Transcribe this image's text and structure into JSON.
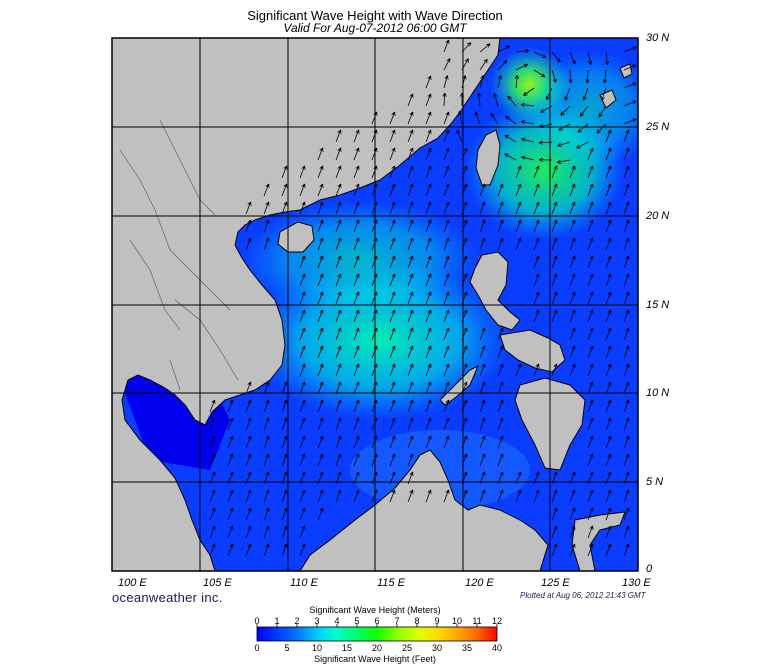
{
  "header": {
    "title": "Significant Wave Height with Wave Direction",
    "subtitle": "Valid For Aug-07-2012 06:00 GMT"
  },
  "footer": {
    "brand": "oceanweather inc.",
    "plotted": "Plotted at Aug 06, 2012 21:43 GMT"
  },
  "map": {
    "lat_labels": [
      "30 N",
      "25 N",
      "20 N",
      "15 N",
      "10 N",
      "5 N",
      "0"
    ],
    "lon_labels": [
      "100 E",
      "105 E",
      "110 E",
      "115 E",
      "120 E",
      "125 E",
      "130 E"
    ],
    "extent": {
      "lon": [
        100,
        130
      ],
      "lat": [
        0,
        30
      ]
    },
    "land_color": "#c0c0c0",
    "dominant_wave_direction": "toward northeast (southwest monsoon)",
    "max_wave_height_m": 7
  },
  "colorbar": {
    "title_meters": "Significant Wave Height (Meters)",
    "title_feet": "Significant Wave Height (Feet)",
    "meters_ticks": [
      "0",
      "1",
      "2",
      "3",
      "4",
      "5",
      "6",
      "7",
      "8",
      "9",
      "10",
      "11",
      "12"
    ],
    "feet_ticks": [
      "0",
      "5",
      "10",
      "15",
      "20",
      "25",
      "30",
      "35",
      "40"
    ],
    "colors": [
      "#0000ff",
      "#0044ff",
      "#0088ff",
      "#00bbff",
      "#00eeee",
      "#00ffaa",
      "#00ff55",
      "#22ff00",
      "#88ff00",
      "#ccff00",
      "#ffff00",
      "#ffcc00",
      "#ff9900",
      "#ff6600",
      "#ff3300",
      "#ff0000"
    ]
  }
}
